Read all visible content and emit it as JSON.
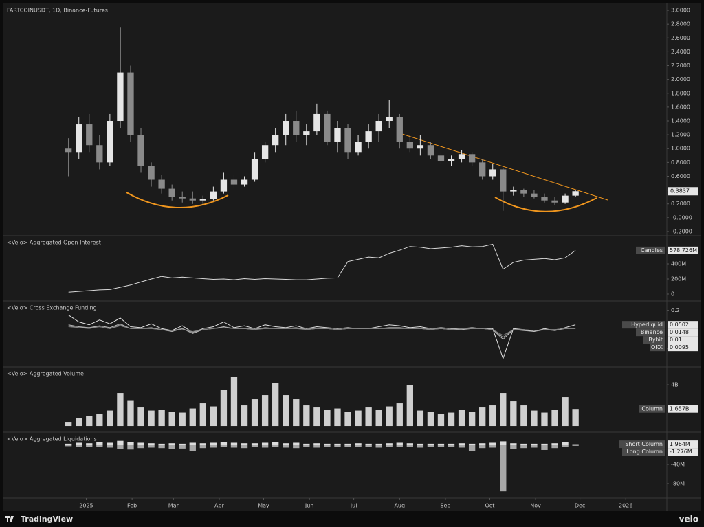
{
  "branding": {
    "left": "TradingView",
    "right": "velo"
  },
  "chart_data": [
    {
      "type": "candlestick",
      "title": "FARTCOINUSDT, 1D, Binance-Futures",
      "up_color": "#e6e6e6",
      "down_color": "#8a8a8a",
      "x": [
        -12,
        -5,
        2,
        9,
        16,
        23,
        30,
        37,
        44,
        51,
        58,
        65,
        72,
        79,
        86,
        93,
        100,
        107,
        114,
        121,
        128,
        135,
        142,
        149,
        156,
        163,
        170,
        177,
        184,
        191,
        198,
        205,
        212,
        219,
        226,
        233,
        240,
        247,
        254,
        261,
        268,
        275,
        282,
        289,
        296,
        303,
        310,
        317,
        324,
        331
      ],
      "xlim": [
        -56.5,
        392.8
      ],
      "xticks": [
        {
          "value": 0,
          "label": "2025"
        },
        {
          "value": 31,
          "label": "Feb"
        },
        {
          "value": 59,
          "label": "Mar"
        },
        {
          "value": 90,
          "label": "Apr"
        },
        {
          "value": 120,
          "label": "May"
        },
        {
          "value": 151,
          "label": "Jun"
        },
        {
          "value": 181,
          "label": "Jul"
        },
        {
          "value": 212,
          "label": "Aug"
        },
        {
          "value": 243,
          "label": "Sep"
        },
        {
          "value": 273,
          "label": "Oct"
        },
        {
          "value": 304,
          "label": "Nov"
        },
        {
          "value": 334,
          "label": "Dec"
        },
        {
          "value": 365,
          "label": "2026"
        }
      ],
      "open": [
        1.0,
        0.95,
        1.35,
        1.05,
        0.8,
        1.4,
        2.1,
        1.2,
        0.75,
        0.55,
        0.42,
        0.3,
        0.28,
        0.25,
        0.27,
        0.38,
        0.55,
        0.48,
        0.55,
        0.85,
        1.05,
        1.2,
        1.4,
        1.2,
        1.25,
        1.5,
        1.1,
        1.3,
        0.95,
        1.1,
        1.25,
        1.4,
        1.45,
        1.1,
        1.0,
        1.05,
        0.9,
        0.82,
        0.85,
        0.92,
        0.8,
        0.6,
        0.7,
        0.38,
        0.4,
        0.35,
        0.3,
        0.25,
        0.22,
        0.32
      ],
      "high": [
        1.15,
        1.45,
        1.5,
        1.2,
        1.5,
        2.75,
        2.2,
        1.3,
        0.8,
        0.62,
        0.48,
        0.38,
        0.38,
        0.32,
        0.45,
        0.65,
        0.62,
        0.6,
        0.95,
        1.1,
        1.3,
        1.5,
        1.55,
        1.35,
        1.65,
        1.55,
        1.4,
        1.35,
        1.2,
        1.35,
        1.5,
        1.7,
        1.5,
        1.2,
        1.2,
        1.1,
        0.95,
        0.9,
        0.98,
        0.95,
        0.85,
        0.78,
        0.72,
        0.45,
        0.42,
        0.4,
        0.35,
        0.3,
        0.35,
        0.4
      ],
      "low": [
        0.6,
        0.85,
        0.95,
        0.7,
        0.75,
        1.3,
        1.1,
        0.65,
        0.45,
        0.35,
        0.25,
        0.22,
        0.2,
        0.18,
        0.25,
        0.35,
        0.42,
        0.45,
        0.52,
        0.8,
        0.95,
        1.05,
        1.1,
        1.05,
        1.2,
        1.05,
        0.95,
        0.85,
        0.9,
        1.0,
        1.1,
        1.3,
        1.0,
        0.95,
        0.9,
        0.85,
        0.78,
        0.75,
        0.8,
        0.75,
        0.55,
        0.55,
        0.1,
        0.32,
        0.3,
        0.28,
        0.22,
        0.18,
        0.2,
        0.3
      ],
      "close": [
        0.95,
        1.35,
        1.05,
        0.8,
        1.4,
        2.1,
        1.2,
        0.75,
        0.55,
        0.42,
        0.3,
        0.28,
        0.25,
        0.27,
        0.38,
        0.55,
        0.48,
        0.55,
        0.85,
        1.05,
        1.2,
        1.4,
        1.2,
        1.25,
        1.5,
        1.1,
        1.3,
        0.95,
        1.1,
        1.25,
        1.4,
        1.45,
        1.1,
        1.0,
        1.05,
        0.9,
        0.82,
        0.85,
        0.92,
        0.8,
        0.6,
        0.7,
        0.38,
        0.4,
        0.35,
        0.3,
        0.25,
        0.22,
        0.32,
        0.3837
      ],
      "ylim": [
        -0.25,
        3.07
      ],
      "yticks": [
        {
          "value": 3,
          "label": "3.0000"
        },
        {
          "value": 2.8,
          "label": "2.8000"
        },
        {
          "value": 2.6,
          "label": "2.6000"
        },
        {
          "value": 2.4,
          "label": "2.4000"
        },
        {
          "value": 2.2,
          "label": "2.2000"
        },
        {
          "value": 2,
          "label": "2.0000"
        },
        {
          "value": 1.8,
          "label": "1.8000"
        },
        {
          "value": 1.6,
          "label": "1.6000"
        },
        {
          "value": 1.4,
          "label": "1.4000"
        },
        {
          "value": 1.2,
          "label": "1.2000"
        },
        {
          "value": 1,
          "label": "1.0000"
        },
        {
          "value": 0.8,
          "label": "0.8000"
        },
        {
          "value": 0.6,
          "label": "0.6000"
        },
        {
          "value": 0.4,
          "label": "0.4000"
        },
        {
          "value": 0.2,
          "label": "0.2000"
        },
        {
          "value": 0,
          "label": "-0.0000"
        },
        {
          "value": -0.2,
          "label": "-0.2000"
        }
      ]
    },
    {
      "type": "line",
      "title": "<Velo> Aggregated Open Interest",
      "ylim": [
        -82,
        764
      ],
      "yticks": [
        0,
        {
          "value": 200,
          "label": "200M"
        },
        {
          "value": 400,
          "label": "400M"
        }
      ],
      "series": [
        {
          "name": "Candles",
          "color": "#d8d8d8",
          "values": [
            25,
            35,
            45,
            55,
            60,
            90,
            120,
            160,
            200,
            235,
            215,
            225,
            215,
            205,
            195,
            200,
            190,
            205,
            195,
            205,
            200,
            195,
            190,
            190,
            200,
            210,
            215,
            430,
            460,
            490,
            480,
            540,
            580,
            630,
            620,
            600,
            610,
            620,
            640,
            625,
            630,
            660,
            330,
            420,
            450,
            460,
            470,
            455,
            480,
            578.726
          ],
          "value_labels": [
            null,
            null,
            null,
            null,
            null,
            null,
            null,
            null,
            null,
            null,
            null,
            null,
            null,
            null,
            null,
            null,
            null,
            null,
            null,
            null,
            null,
            null,
            null,
            null,
            null,
            null,
            null,
            null,
            null,
            null,
            null,
            null,
            null,
            null,
            null,
            null,
            null,
            null,
            null,
            null,
            null,
            null,
            null,
            null,
            null,
            null,
            null,
            null,
            null,
            "578.726M"
          ]
        }
      ]
    },
    {
      "type": "line",
      "title": "<Velo> Cross Exchange Funding",
      "ylim": [
        -0.38,
        0.29
      ],
      "yticks": [
        0.2,
        -0.2
      ],
      "series": [
        {
          "name": "Hyperliquid",
          "color": "#e0e0e0",
          "values": [
            0.15,
            0.08,
            0.05,
            0.1,
            0.06,
            0.12,
            0.03,
            0.02,
            0.06,
            0.01,
            -0.01,
            0.04,
            -0.03,
            0.01,
            0.03,
            0.08,
            0.02,
            0.04,
            0.01,
            0.05,
            0.03,
            0.02,
            0.04,
            0.01,
            0.03,
            0.02,
            0.01,
            0.02,
            0.01,
            0.01,
            0.03,
            0.05,
            0.04,
            0.02,
            0.03,
            0.01,
            0.02,
            0.01,
            0.01,
            0.02,
            0.01,
            0.01,
            -0.3,
            0.01,
            0.0,
            -0.02,
            0.01,
            -0.01,
            0.02,
            0.0502
          ]
        },
        {
          "name": "Binance",
          "color": "#bdbdbd",
          "values": [
            0.05,
            0.03,
            0.02,
            0.04,
            0.02,
            0.06,
            0.01,
            0.01,
            0.02,
            0.0,
            -0.02,
            0.01,
            -0.04,
            0.0,
            0.01,
            0.03,
            0.01,
            0.01,
            0.0,
            0.02,
            0.01,
            0.01,
            0.02,
            0.0,
            0.01,
            0.01,
            0.0,
            0.01,
            0.01,
            0.01,
            0.01,
            0.02,
            0.02,
            0.01,
            0.01,
            0.0,
            0.01,
            0.0,
            0.0,
            0.01,
            0.01,
            0.0,
            -0.1,
            0.0,
            -0.01,
            -0.02,
            0.0,
            -0.01,
            0.01,
            0.0148
          ]
        },
        {
          "name": "Bybit",
          "color": "#9e9e9e",
          "values": [
            0.04,
            0.02,
            0.02,
            0.03,
            0.01,
            0.05,
            0.01,
            0.01,
            0.01,
            0.0,
            -0.01,
            0.01,
            -0.03,
            0.0,
            0.01,
            0.02,
            0.01,
            0.01,
            0.01,
            0.01,
            0.01,
            0.01,
            0.01,
            0.01,
            0.01,
            0.01,
            0.0,
            0.01,
            0.01,
            0.01,
            0.01,
            0.01,
            0.01,
            0.01,
            0.01,
            0.01,
            0.01,
            0.0,
            0.01,
            0.01,
            0.01,
            0.0,
            -0.08,
            0.0,
            0.0,
            -0.01,
            0.0,
            0.0,
            0.01,
            0.01
          ]
        },
        {
          "name": "OKX",
          "color": "#808080",
          "values": [
            0.03,
            0.02,
            0.01,
            0.03,
            0.01,
            0.04,
            0.01,
            0.01,
            0.01,
            0.0,
            -0.01,
            0.0,
            -0.02,
            0.0,
            0.01,
            0.02,
            0.01,
            0.01,
            0.0,
            0.01,
            0.01,
            0.01,
            0.01,
            0.0,
            0.01,
            0.01,
            0.0,
            0.01,
            0.01,
            0.01,
            0.01,
            0.01,
            0.01,
            0.01,
            0.01,
            0.0,
            0.01,
            0.0,
            0.01,
            0.01,
            0.01,
            0.0,
            -0.06,
            0.0,
            0.0,
            -0.01,
            0.0,
            0.0,
            0.01,
            0.0095
          ]
        }
      ]
    },
    {
      "type": "bar",
      "title": "<Velo> Aggregated Volume",
      "ylim": [
        -0.53,
        5.67
      ],
      "yticks": [
        {
          "value": 4,
          "label": "4B"
        }
      ],
      "series": [
        {
          "name": "Column",
          "color": "#cfcfcf",
          "values": [
            0.4,
            0.8,
            1.0,
            1.2,
            1.5,
            3.2,
            2.5,
            1.8,
            1.5,
            1.6,
            1.4,
            1.3,
            1.7,
            2.2,
            1.9,
            3.5,
            4.8,
            2.0,
            2.6,
            3.0,
            4.2,
            3.0,
            2.6,
            2.0,
            1.8,
            1.6,
            1.7,
            1.4,
            1.5,
            1.8,
            1.6,
            1.9,
            2.2,
            4.0,
            1.5,
            1.4,
            1.2,
            1.3,
            1.6,
            1.4,
            1.8,
            2.0,
            3.2,
            2.4,
            2.0,
            1.5,
            1.3,
            1.6,
            2.8,
            1.657
          ],
          "value_labels": [
            null,
            null,
            null,
            null,
            null,
            null,
            null,
            null,
            null,
            null,
            null,
            null,
            null,
            null,
            null,
            null,
            null,
            null,
            null,
            null,
            null,
            null,
            null,
            null,
            null,
            null,
            null,
            null,
            null,
            null,
            null,
            null,
            null,
            null,
            null,
            null,
            null,
            null,
            null,
            null,
            null,
            null,
            null,
            null,
            null,
            null,
            null,
            null,
            null,
            "1.657B"
          ]
        }
      ]
    },
    {
      "type": "bar",
      "title": "<Velo> Aggregated Liquidations",
      "ylim": [
        -108.6,
        25.7
      ],
      "yticks": [
        {
          "value": -40,
          "label": "-40M"
        },
        {
          "value": -80,
          "label": "-80M"
        }
      ],
      "series": [
        {
          "name": "Short Column",
          "color": "#dcdcdc",
          "values": [
            3,
            5,
            4,
            6,
            5,
            9,
            7,
            5,
            4,
            3,
            4,
            3,
            5,
            4,
            5,
            6,
            5,
            4,
            4,
            5,
            6,
            4,
            5,
            3,
            4,
            3,
            3,
            3,
            4,
            3,
            3,
            4,
            5,
            4,
            3,
            3,
            3,
            3,
            4,
            3,
            4,
            5,
            8,
            4,
            3,
            3,
            3,
            4,
            6,
            1.964
          ],
          "value_labels": [
            null,
            null,
            null,
            null,
            null,
            null,
            null,
            null,
            null,
            null,
            null,
            null,
            null,
            null,
            null,
            null,
            null,
            null,
            null,
            null,
            null,
            null,
            null,
            null,
            null,
            null,
            null,
            null,
            null,
            null,
            null,
            null,
            null,
            null,
            null,
            null,
            null,
            null,
            null,
            null,
            null,
            null,
            null,
            null,
            null,
            null,
            null,
            null,
            null,
            "1.964M"
          ]
        },
        {
          "name": "Long Column",
          "color": "#a8a8a8",
          "values": [
            -2,
            -3,
            -4,
            -3,
            -5,
            -8,
            -9,
            -6,
            -5,
            -6,
            -8,
            -7,
            -12,
            -6,
            -5,
            -4,
            -5,
            -6,
            -4,
            -5,
            -4,
            -5,
            -6,
            -4,
            -5,
            -4,
            -3,
            -4,
            -3,
            -4,
            -5,
            -4,
            -3,
            -4,
            -5,
            -4,
            -3,
            -4,
            -5,
            -12,
            -6,
            -5,
            -96,
            -8,
            -6,
            -5,
            -10,
            -6,
            -4,
            -1.276
          ],
          "value_labels": [
            null,
            null,
            null,
            null,
            null,
            null,
            null,
            null,
            null,
            null,
            null,
            null,
            null,
            null,
            null,
            null,
            null,
            null,
            null,
            null,
            null,
            null,
            null,
            null,
            null,
            null,
            null,
            null,
            null,
            null,
            null,
            null,
            null,
            null,
            null,
            null,
            null,
            null,
            null,
            null,
            null,
            null,
            null,
            null,
            null,
            null,
            null,
            null,
            null,
            "-1.276M"
          ]
        }
      ]
    }
  ]
}
